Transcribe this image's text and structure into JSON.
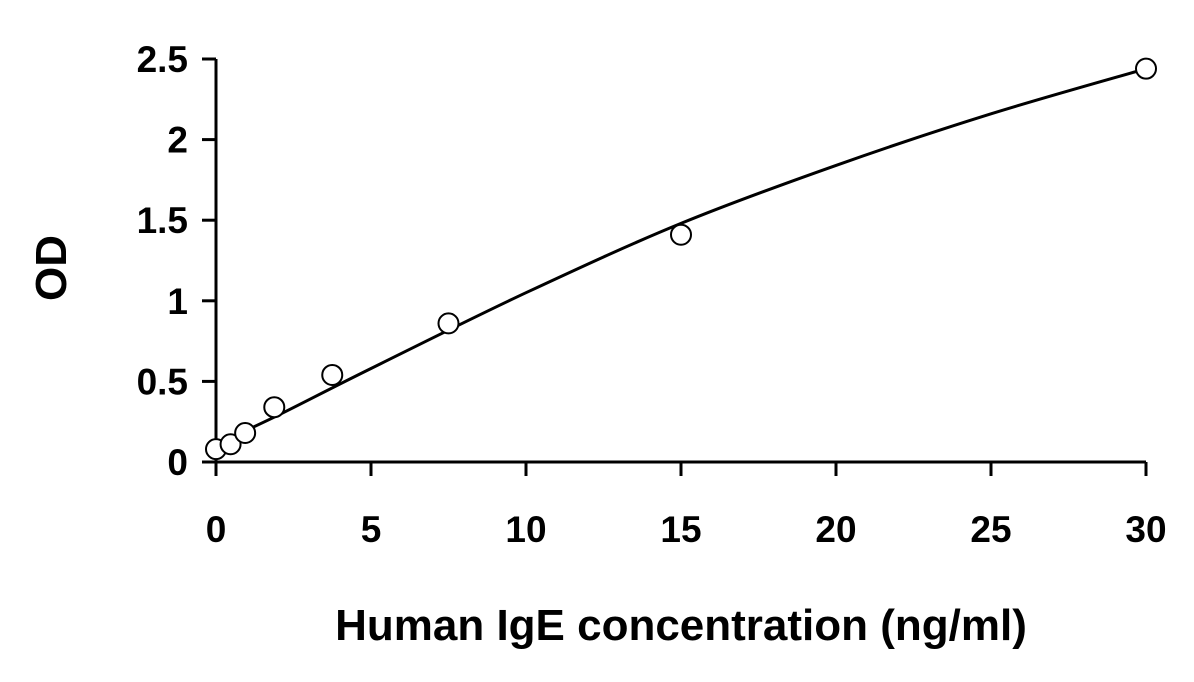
{
  "chart_data": {
    "type": "scatter",
    "title": "",
    "xlabel": "Human IgE concentration (ng/ml)",
    "ylabel": "OD",
    "xlim": [
      0,
      30
    ],
    "ylim": [
      0,
      2.5
    ],
    "x_ticks": [
      {
        "value": 0,
        "label": "0"
      },
      {
        "value": 5,
        "label": "5"
      },
      {
        "value": 10,
        "label": "10"
      },
      {
        "value": 15,
        "label": "15"
      },
      {
        "value": 20,
        "label": "20"
      },
      {
        "value": 25,
        "label": "25"
      },
      {
        "value": 30,
        "label": "30"
      }
    ],
    "y_ticks": [
      {
        "value": 0,
        "label": "0"
      },
      {
        "value": 0.5,
        "label": "0.5"
      },
      {
        "value": 1,
        "label": "1"
      },
      {
        "value": 1.5,
        "label": "1.5"
      },
      {
        "value": 2,
        "label": "2"
      },
      {
        "value": 2.5,
        "label": "2.5"
      }
    ],
    "grid": false,
    "legend": "none",
    "series": [
      {
        "marker": "open-circle",
        "points": [
          {
            "x": 0,
            "y": 0.08
          },
          {
            "x": 0.47,
            "y": 0.11
          },
          {
            "x": 0.94,
            "y": 0.18
          },
          {
            "x": 1.88,
            "y": 0.34
          },
          {
            "x": 3.75,
            "y": 0.54
          },
          {
            "x": 7.5,
            "y": 0.86
          },
          {
            "x": 15,
            "y": 1.41
          },
          {
            "x": 30,
            "y": 2.44
          }
        ]
      }
    ],
    "fit_curve": {
      "style": "solid",
      "points": [
        {
          "x": 0,
          "y": 0.11
        },
        {
          "x": 2,
          "y": 0.29
        },
        {
          "x": 5,
          "y": 0.58
        },
        {
          "x": 10,
          "y": 1.05
        },
        {
          "x": 15,
          "y": 1.48
        },
        {
          "x": 20,
          "y": 1.84
        },
        {
          "x": 25,
          "y": 2.16
        },
        {
          "x": 30,
          "y": 2.44
        }
      ]
    },
    "colors": {
      "axis": "#000000",
      "marker_stroke": "#000000",
      "marker_fill": "#ffffff",
      "curve": "#000000"
    }
  }
}
